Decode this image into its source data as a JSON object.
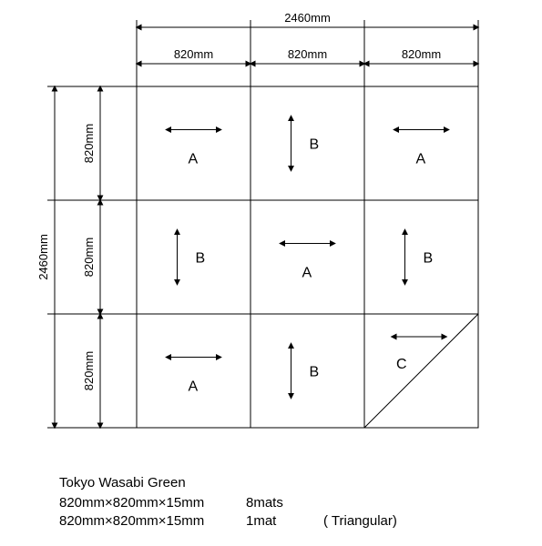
{
  "diagram": {
    "type": "infographic",
    "background_color": "#ffffff",
    "line_color": "#000000",
    "line_width": 1,
    "text_color": "#000000",
    "label_fontsize": 16,
    "dim_fontsize": 13,
    "grid": {
      "cols": 3,
      "rows": 3,
      "cell_size_mm": 820,
      "total_mm": 2460,
      "cells": [
        {
          "r": 0,
          "c": 0,
          "label": "A",
          "arrow": "h"
        },
        {
          "r": 0,
          "c": 1,
          "label": "B",
          "arrow": "v"
        },
        {
          "r": 0,
          "c": 2,
          "label": "A",
          "arrow": "h"
        },
        {
          "r": 1,
          "c": 0,
          "label": "B",
          "arrow": "v"
        },
        {
          "r": 1,
          "c": 1,
          "label": "A",
          "arrow": "h"
        },
        {
          "r": 1,
          "c": 2,
          "label": "B",
          "arrow": "v"
        },
        {
          "r": 2,
          "c": 0,
          "label": "A",
          "arrow": "h"
        },
        {
          "r": 2,
          "c": 1,
          "label": "B",
          "arrow": "v"
        },
        {
          "r": 2,
          "c": 2,
          "label": "C",
          "arrow": "h",
          "triangular": true
        }
      ]
    },
    "dimensions": {
      "top_total": "2460mm",
      "top_cells": [
        "820mm",
        "820mm",
        "820mm"
      ],
      "left_total": "2460mm",
      "left_cells": [
        "820mm",
        "820mm",
        "820mm"
      ]
    }
  },
  "caption": {
    "line1": "Tokyo   Wasabi Green",
    "line2_left": "820mm×820mm×15mm",
    "line2_mid": "8mats",
    "line3_left": "820mm×820mm×15mm",
    "line3_mid": "1mat",
    "line3_right": "( Triangular)"
  }
}
